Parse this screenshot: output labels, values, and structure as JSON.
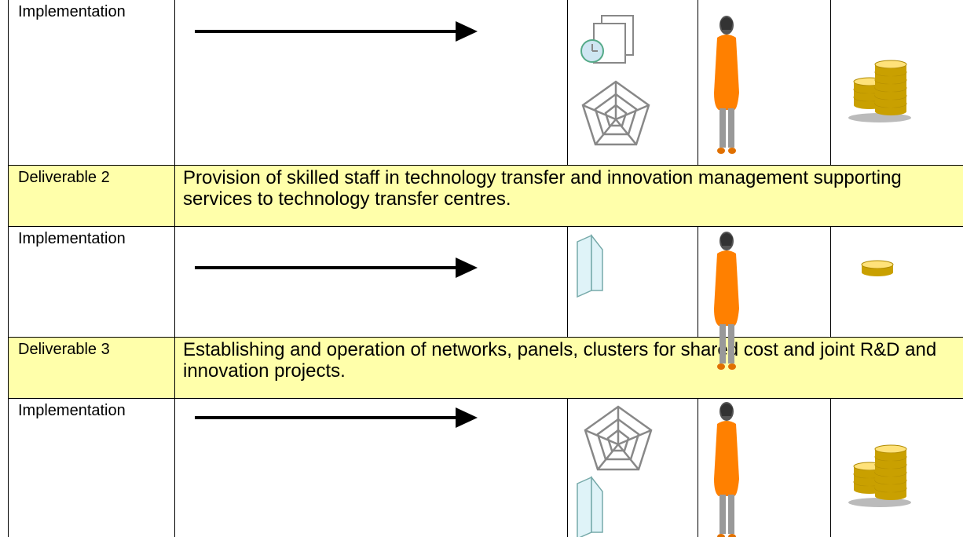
{
  "table": {
    "rows": [
      [
        "Implementation"
      ],
      [
        "Deliverable 2",
        "Provision of skilled staff in technology transfer and innovation management supporting services to technology transfer centres."
      ],
      [
        "Implementation"
      ],
      [
        "Deliverable 3",
        "Establishing and operation of networks, panels, clusters for shared cost and joint R&D and innovation projects."
      ],
      [
        "Implementation"
      ]
    ]
  }
}
